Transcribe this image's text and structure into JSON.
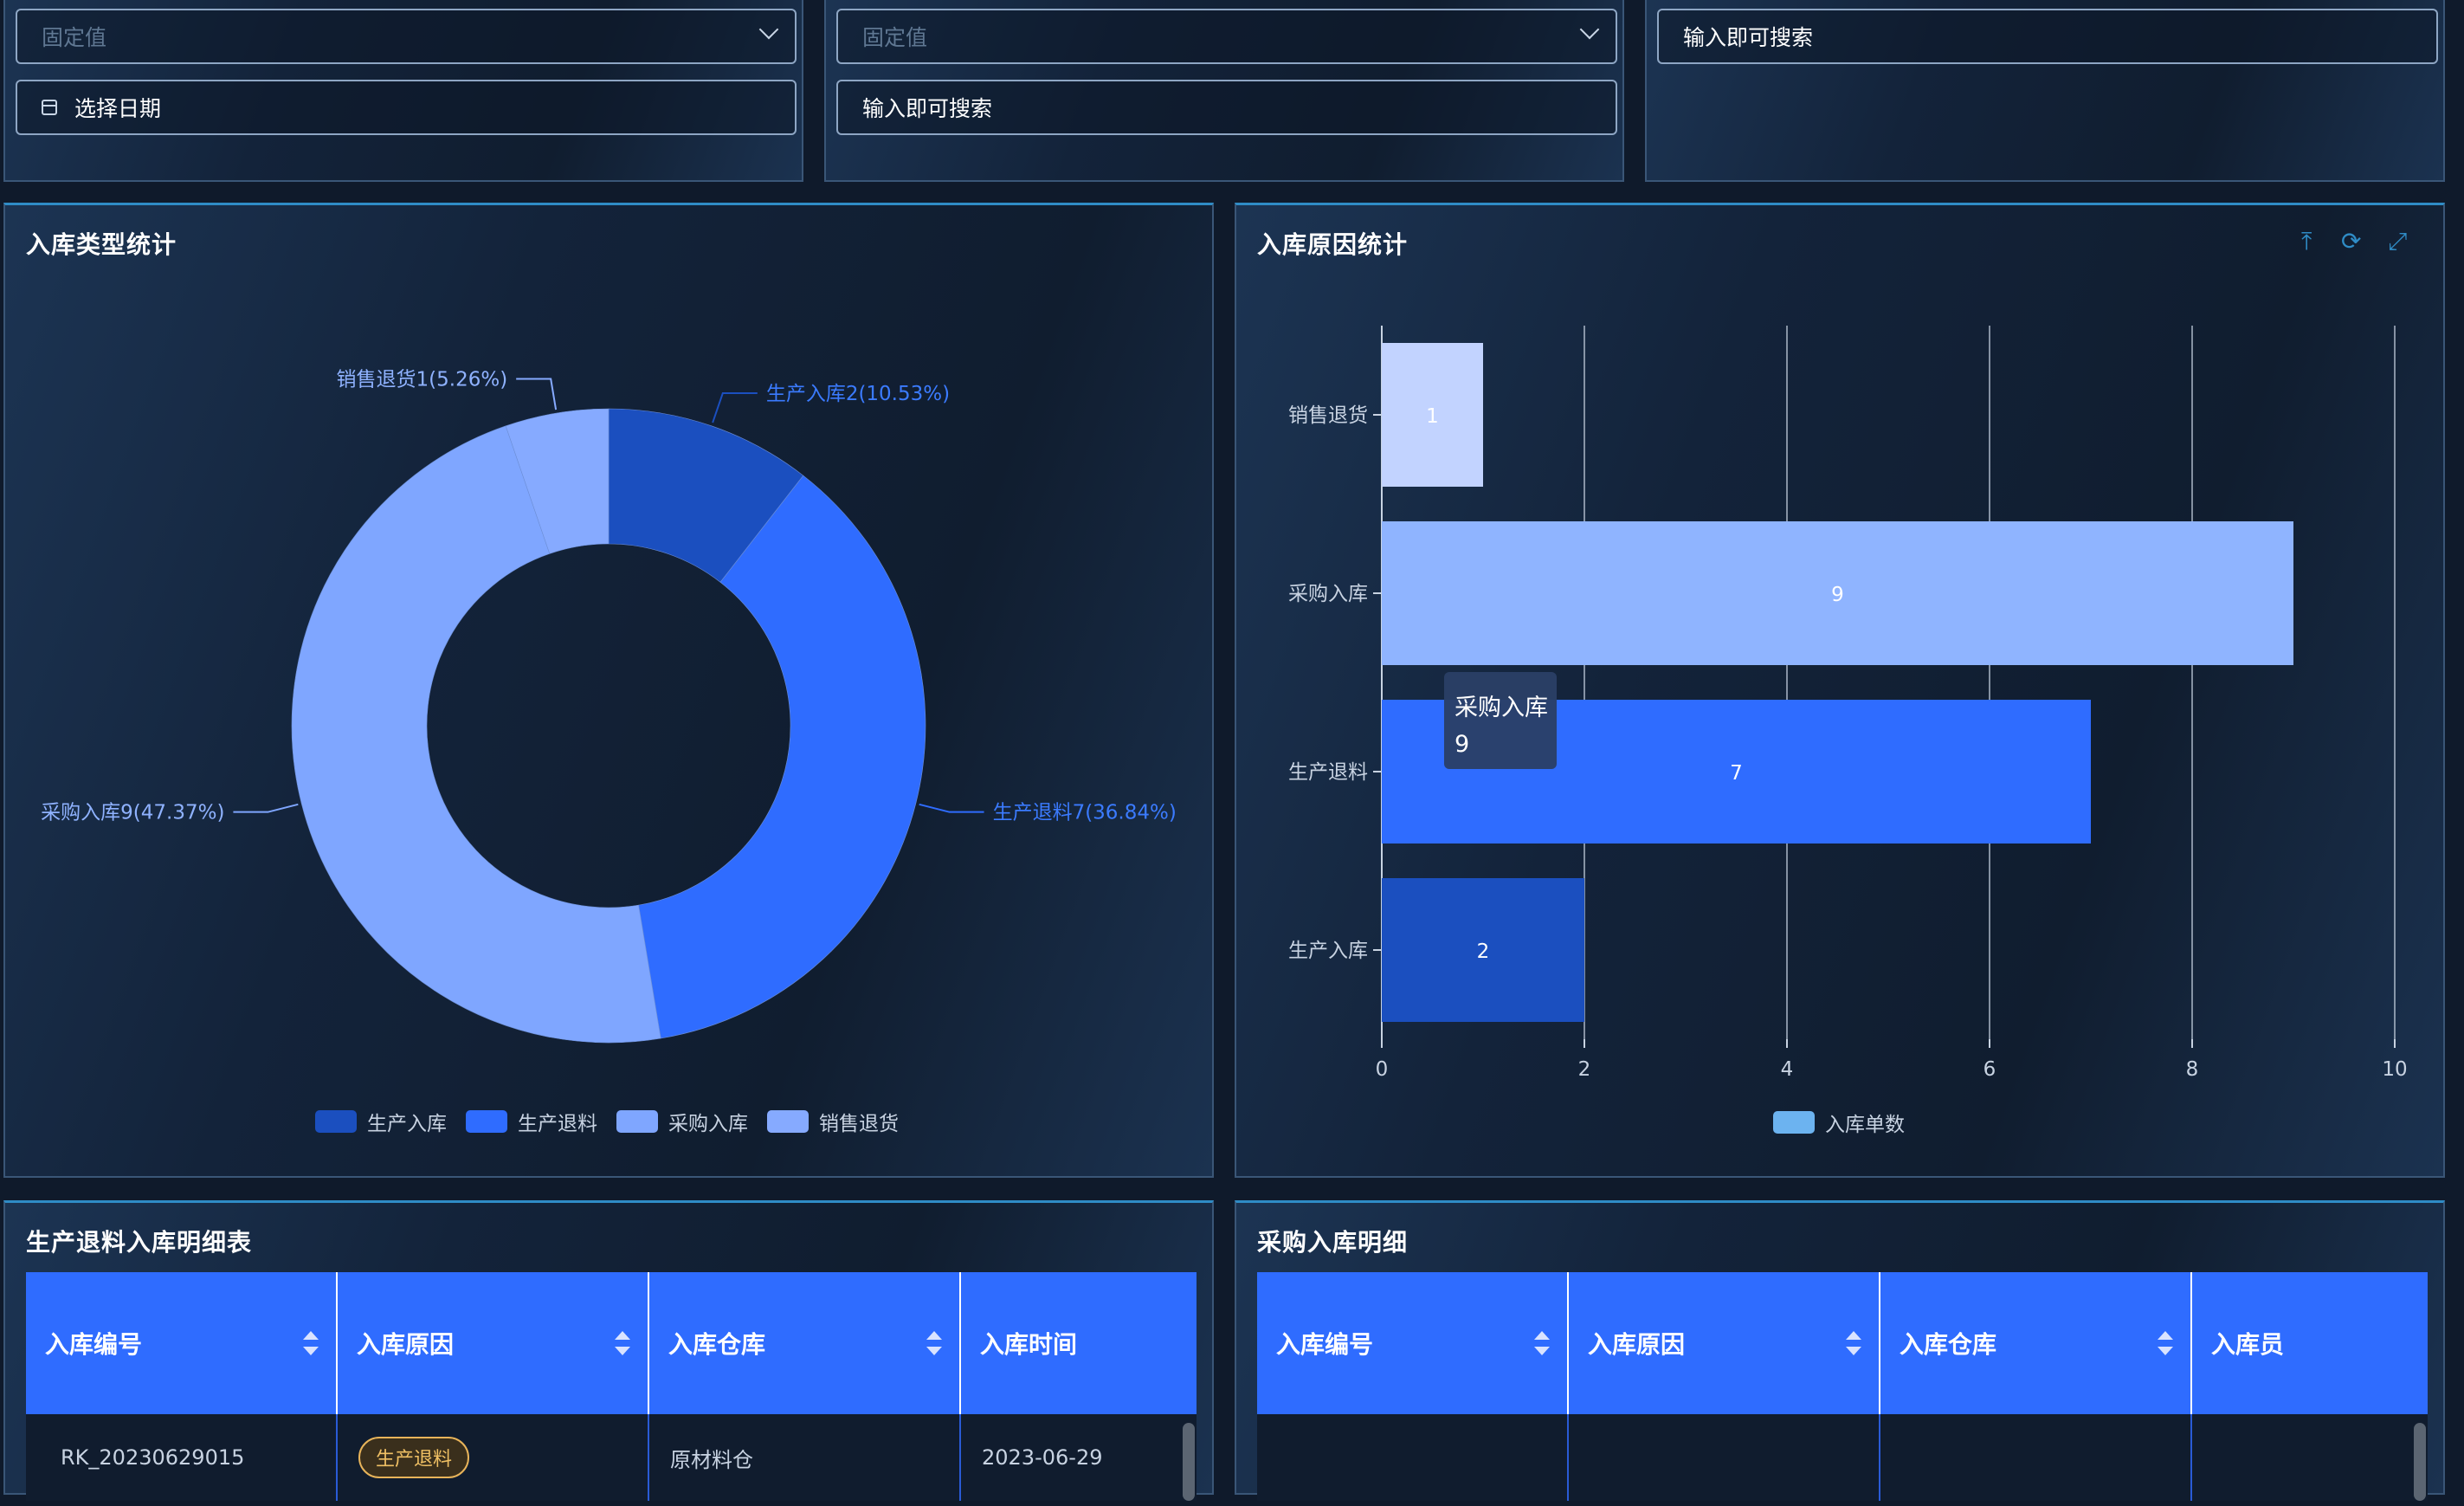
{
  "filters": {
    "select1_placeholder": "固定值",
    "date_placeholder": "选择日期",
    "select2_placeholder": "固定值",
    "search1_value": "输入即可搜索",
    "search2_value": "输入即可搜索"
  },
  "panels": {
    "donut_title": "入库类型统计",
    "bar_title": "入库原因统计",
    "table1_title": "生产退料入库明细表",
    "table2_title": "采购入库明细"
  },
  "toolbar": {
    "export_icon": "upload-icon",
    "refresh_icon": "refresh-icon",
    "fullscreen_icon": "fullscreen-icon"
  },
  "chart_data": [
    {
      "type": "pie",
      "variant": "donut",
      "title": "入库类型统计",
      "categories": [
        "生产入库",
        "生产退料",
        "采购入库",
        "销售退货"
      ],
      "values": [
        2,
        7,
        9,
        1
      ],
      "labels": [
        "生产入库2(10.53%)",
        "生产退料7(36.84%)",
        "采购入库9(47.37%)",
        "销售退货1(5.26%)"
      ],
      "colors": [
        "#1b4fbf",
        "#2f6cff",
        "#7fa6ff",
        "#86aaff"
      ],
      "legend": "bottom"
    },
    {
      "type": "bar",
      "orientation": "horizontal",
      "title": "入库原因统计",
      "categories": [
        "生产入库",
        "生产退料",
        "采购入库",
        "销售退货"
      ],
      "series": [
        {
          "name": "入库单数",
          "values": [
            2,
            7,
            9,
            1
          ]
        }
      ],
      "bar_colors": [
        "#1b4fbf",
        "#2f6cff",
        "#8fb4ff",
        "#c2d3ff"
      ],
      "legend_color": "#6cb3f0",
      "xlim": [
        0,
        10
      ],
      "xticks": [
        0,
        2,
        4,
        6,
        8,
        10
      ],
      "grid": true,
      "legend": "bottom",
      "tooltip": {
        "label": "采购入库",
        "value": "9"
      }
    }
  ],
  "table1": {
    "headers": [
      "入库编号",
      "入库原因",
      "入库仓库",
      "入库时间"
    ],
    "rows": [
      [
        "RK_20230629015",
        "生产退料",
        "原材料仓",
        "2023-06-29"
      ]
    ]
  },
  "table2": {
    "headers": [
      "入库编号",
      "入库原因",
      "入库仓库",
      "入库员"
    ]
  }
}
